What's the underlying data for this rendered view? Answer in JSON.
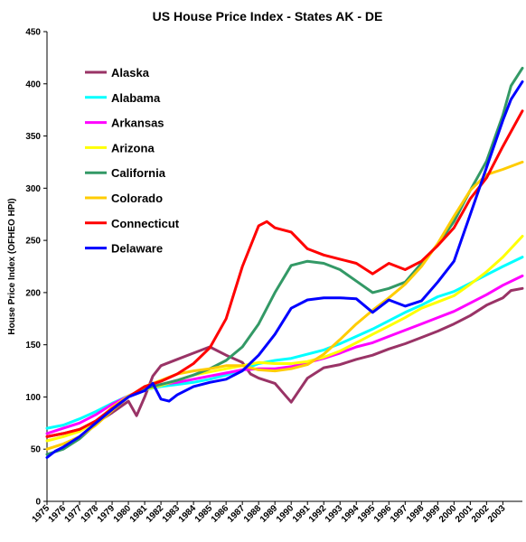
{
  "chart_data": {
    "type": "line",
    "title": "US House Price Index - States AK - DE",
    "xlabel": "",
    "ylabel": "House Price Index (OFHEO  HPI)",
    "ylim": [
      0,
      450
    ],
    "yticks": [
      0,
      50,
      100,
      150,
      200,
      250,
      300,
      350,
      400,
      450
    ],
    "xlim": [
      1975.0,
      2004.2
    ],
    "xticks": [
      "1975",
      "1976",
      "1977",
      "1978",
      "1979",
      "1980",
      "1981",
      "1982",
      "1983",
      "1984",
      "1985",
      "1986",
      "1987",
      "1988",
      "1989",
      "1990",
      "1991",
      "1992",
      "1993",
      "1994",
      "1995",
      "1996",
      "1997",
      "1998",
      "1999",
      "2000",
      "2001",
      "2002",
      "2003"
    ],
    "grid": false,
    "legend_position": "top-left",
    "series": [
      {
        "name": "Alaska",
        "color": "#993366",
        "x": [
          1975,
          1976,
          1977,
          1978,
          1979,
          1980,
          1980.5,
          1981,
          1981.5,
          1982,
          1983,
          1984,
          1985,
          1986,
          1987,
          1987.5,
          1988,
          1989,
          1989.5,
          1990,
          1991,
          1992,
          1993,
          1994,
          1995,
          1996,
          1997,
          1998,
          1999,
          2000,
          2001,
          2002,
          2003,
          2003.5,
          2004.2
        ],
        "y": [
          62,
          65,
          69,
          75,
          85,
          96,
          82,
          100,
          120,
          130,
          136,
          142,
          148,
          140,
          133,
          122,
          118,
          113,
          104,
          95,
          118,
          128,
          131,
          136,
          140,
          146,
          151,
          157,
          163,
          170,
          178,
          188,
          195,
          202,
          204
        ]
      },
      {
        "name": "Alabama",
        "color": "#00FFFF",
        "x": [
          1975,
          1976,
          1977,
          1978,
          1979,
          1980,
          1981,
          1982,
          1983,
          1984,
          1985,
          1986,
          1987,
          1988,
          1989,
          1990,
          1991,
          1992,
          1993,
          1994,
          1995,
          1996,
          1997,
          1998,
          1999,
          2000,
          2001,
          2002,
          2003,
          2004.2
        ],
        "y": [
          70,
          73,
          79,
          86,
          94,
          101,
          107,
          110,
          112,
          114,
          117,
          121,
          126,
          132,
          135,
          137,
          141,
          145,
          151,
          158,
          165,
          173,
          181,
          188,
          196,
          201,
          209,
          217,
          225,
          234
        ]
      },
      {
        "name": "Arkansas",
        "color": "#FF00FF",
        "x": [
          1975,
          1976,
          1977,
          1978,
          1979,
          1980,
          1981,
          1982,
          1983,
          1984,
          1985,
          1986,
          1987,
          1988,
          1989,
          1990,
          1991,
          1992,
          1993,
          1994,
          1995,
          1996,
          1997,
          1998,
          1999,
          2000,
          2001,
          2002,
          2003,
          2004.2
        ],
        "y": [
          65,
          70,
          75,
          83,
          93,
          101,
          108,
          112,
          114,
          117,
          120,
          123,
          126,
          127,
          127,
          129,
          133,
          137,
          142,
          148,
          152,
          158,
          164,
          170,
          176,
          182,
          190,
          198,
          207,
          216
        ]
      },
      {
        "name": "Arizona",
        "color": "#FFFF00",
        "x": [
          1975,
          1976,
          1977,
          1978,
          1979,
          1980,
          1981,
          1982,
          1983,
          1984,
          1985,
          1986,
          1987,
          1988,
          1989,
          1990,
          1991,
          1992,
          1993,
          1994,
          1995,
          1996,
          1997,
          1998,
          1999,
          2000,
          2001,
          2002,
          2003,
          2004.2
        ],
        "y": [
          58,
          62,
          67,
          76,
          90,
          101,
          107,
          111,
          116,
          121,
          124,
          127,
          130,
          133,
          132,
          132,
          134,
          138,
          144,
          152,
          160,
          168,
          176,
          185,
          191,
          197,
          208,
          220,
          234,
          254
        ]
      },
      {
        "name": "California",
        "color": "#339966",
        "x": [
          1975,
          1976,
          1977,
          1978,
          1979,
          1980,
          1981,
          1982,
          1983,
          1984,
          1985,
          1986,
          1987,
          1988,
          1989,
          1990,
          1991,
          1992,
          1993,
          1994,
          1995,
          1996,
          1997,
          1998,
          1999,
          2000,
          2001,
          2002,
          2003,
          2003.5,
          2004.2
        ],
        "y": [
          45,
          50,
          60,
          74,
          88,
          100,
          108,
          112,
          116,
          121,
          127,
          135,
          148,
          170,
          200,
          226,
          230,
          228,
          222,
          211,
          200,
          204,
          210,
          228,
          246,
          268,
          298,
          326,
          370,
          398,
          415
        ]
      },
      {
        "name": "Colorado",
        "color": "#FFCC00",
        "x": [
          1975,
          1976,
          1977,
          1978,
          1979,
          1980,
          1981,
          1982,
          1983,
          1984,
          1985,
          1986,
          1987,
          1988,
          1989,
          1990,
          1991,
          1992,
          1993,
          1994,
          1995,
          1996,
          1997,
          1998,
          1999,
          2000,
          2001,
          2002,
          2003,
          2004.2
        ],
        "y": [
          50,
          55,
          62,
          73,
          87,
          100,
          110,
          116,
          122,
          125,
          127,
          130,
          130,
          126,
          125,
          127,
          131,
          141,
          155,
          170,
          183,
          195,
          208,
          225,
          247,
          273,
          298,
          313,
          318,
          325
        ]
      },
      {
        "name": "Connecticut",
        "color": "#FF0000",
        "x": [
          1975,
          1976,
          1977,
          1978,
          1979,
          1980,
          1981,
          1982,
          1983,
          1984,
          1985,
          1986,
          1987,
          1988,
          1988.5,
          1989,
          1990,
          1991,
          1992,
          1993,
          1994,
          1995,
          1996,
          1997,
          1998,
          1999,
          2000,
          2001,
          2002,
          2003,
          2004.2
        ],
        "y": [
          62,
          65,
          69,
          77,
          89,
          100,
          110,
          115,
          122,
          132,
          147,
          175,
          225,
          264,
          268,
          262,
          258,
          242,
          236,
          232,
          228,
          218,
          228,
          222,
          230,
          245,
          262,
          290,
          310,
          340,
          374
        ]
      },
      {
        "name": "Delaware",
        "color": "#0000FF",
        "x": [
          1975,
          1975.5,
          1976,
          1977,
          1978,
          1979,
          1980,
          1981,
          1981.5,
          1982,
          1982.5,
          1983,
          1984,
          1985,
          1986,
          1987,
          1988,
          1989,
          1990,
          1991,
          1992,
          1993,
          1994,
          1995,
          1996,
          1997,
          1998,
          1999,
          2000,
          2001,
          2002,
          2003,
          2003.5,
          2004.2
        ],
        "y": [
          42,
          48,
          52,
          62,
          75,
          88,
          100,
          106,
          113,
          98,
          96,
          102,
          110,
          114,
          117,
          125,
          140,
          160,
          185,
          193,
          195,
          195,
          194,
          181,
          193,
          187,
          192,
          210,
          230,
          275,
          320,
          365,
          385,
          402
        ]
      }
    ]
  }
}
